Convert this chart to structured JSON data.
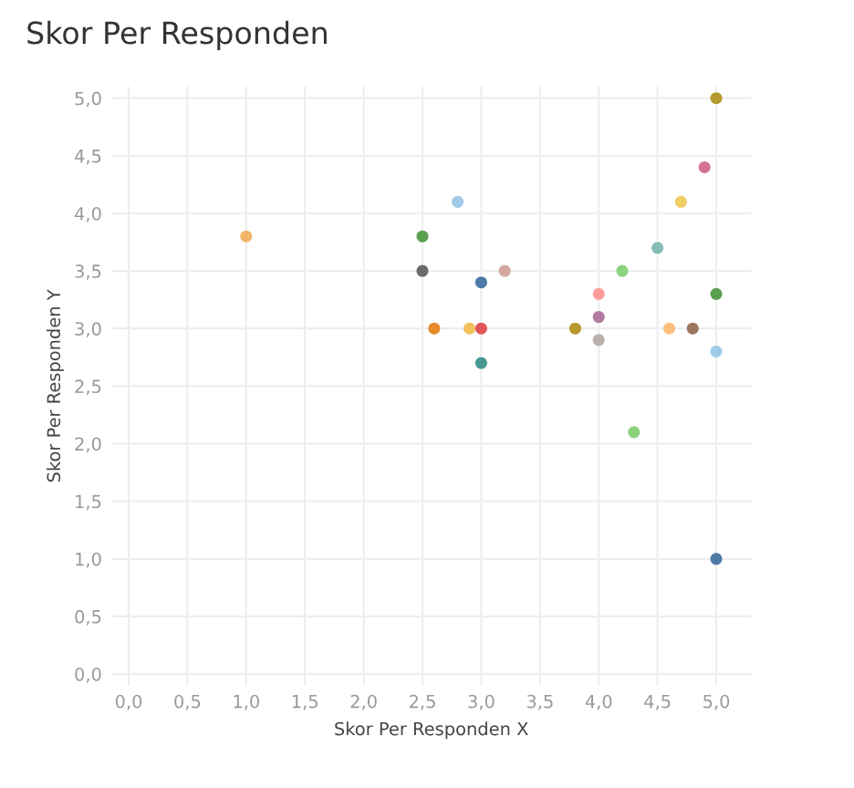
{
  "chart_data": {
    "type": "scatter",
    "title": "Skor Per Responden",
    "xlabel": "Skor Per Responden X",
    "ylabel": "Skor Per Responden Y",
    "x": [
      1.0,
      2.5,
      2.5,
      2.6,
      2.8,
      2.9,
      3.0,
      3.0,
      3.0,
      3.2,
      3.8,
      4.0,
      4.0,
      4.0,
      4.2,
      4.3,
      4.5,
      4.6,
      4.7,
      4.8,
      4.9,
      5.0,
      5.0,
      5.0,
      5.0
    ],
    "values": [
      3.8,
      3.8,
      3.5,
      3.0,
      4.1,
      3.0,
      3.4,
      3.0,
      2.7,
      3.5,
      3.0,
      3.3,
      3.1,
      2.9,
      3.5,
      2.1,
      3.7,
      3.0,
      4.1,
      3.0,
      4.4,
      5.0,
      3.3,
      2.8,
      1.0
    ],
    "colors": [
      "#f1b56a",
      "#59a14f",
      "#6b6b6b",
      "#e8892b",
      "#a0cbe8",
      "#f1c15c",
      "#4e79a7",
      "#e15759",
      "#499894",
      "#d4a6a0",
      "#b6992d",
      "#ff9d9a",
      "#b07aa1",
      "#bab0ac",
      "#8cd17d",
      "#8cd17d",
      "#86bcb6",
      "#ffbe7d",
      "#f1ce63",
      "#9d7660",
      "#d37295",
      "#b6992d",
      "#59a14f",
      "#a0cbe8",
      "#4e79a7"
    ],
    "xlim": [
      -0.15,
      5.3
    ],
    "ylim": [
      -0.1,
      5.1
    ],
    "xticks": [
      {
        "value": 0,
        "label": "0,0"
      },
      {
        "value": 0.5,
        "label": "0,5"
      },
      {
        "value": 1,
        "label": "1,0"
      },
      {
        "value": 1.5,
        "label": "1,5"
      },
      {
        "value": 2,
        "label": "2,0"
      },
      {
        "value": 2.5,
        "label": "2,5"
      },
      {
        "value": 3,
        "label": "3,0"
      },
      {
        "value": 3.5,
        "label": "3,5"
      },
      {
        "value": 4,
        "label": "4,0"
      },
      {
        "value": 4.5,
        "label": "4,5"
      },
      {
        "value": 5,
        "label": "5,0"
      }
    ],
    "yticks": [
      {
        "value": 0,
        "label": "0,0"
      },
      {
        "value": 0.5,
        "label": "0,5"
      },
      {
        "value": 1,
        "label": "1,0"
      },
      {
        "value": 1.5,
        "label": "1,5"
      },
      {
        "value": 2,
        "label": "2,0"
      },
      {
        "value": 2.5,
        "label": "2,5"
      },
      {
        "value": 3,
        "label": "3,0"
      },
      {
        "value": 3.5,
        "label": "3,5"
      },
      {
        "value": 4,
        "label": "4,0"
      },
      {
        "value": 4.5,
        "label": "4,5"
      },
      {
        "value": 5,
        "label": "5,0"
      }
    ],
    "grid": true,
    "marker": "circle"
  }
}
